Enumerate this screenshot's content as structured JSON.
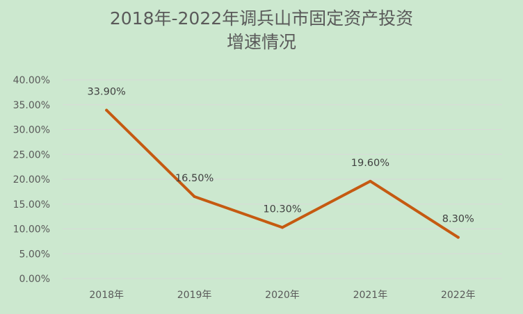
{
  "chart_data": {
    "type": "line",
    "title_line1": "2018年-2022年调兵山市固定资产投资",
    "title_line2": "增速情况",
    "categories": [
      "2018年",
      "2019年",
      "2020年",
      "2021年",
      "2022年"
    ],
    "series": [
      {
        "values": [
          33.9,
          16.5,
          10.3,
          19.6,
          8.3
        ],
        "color": "#c55a11"
      }
    ],
    "data_labels": [
      "33.90%",
      "16.50%",
      "10.30%",
      "19.60%",
      "8.30%"
    ],
    "yticks": [
      "0.00%",
      "5.00%",
      "10.00%",
      "15.00%",
      "20.00%",
      "25.00%",
      "30.00%",
      "35.00%",
      "40.00%"
    ],
    "ylim": [
      0,
      40
    ],
    "grid": true,
    "background": "#cce8cf",
    "gridline_color": "#d9d9d9"
  }
}
